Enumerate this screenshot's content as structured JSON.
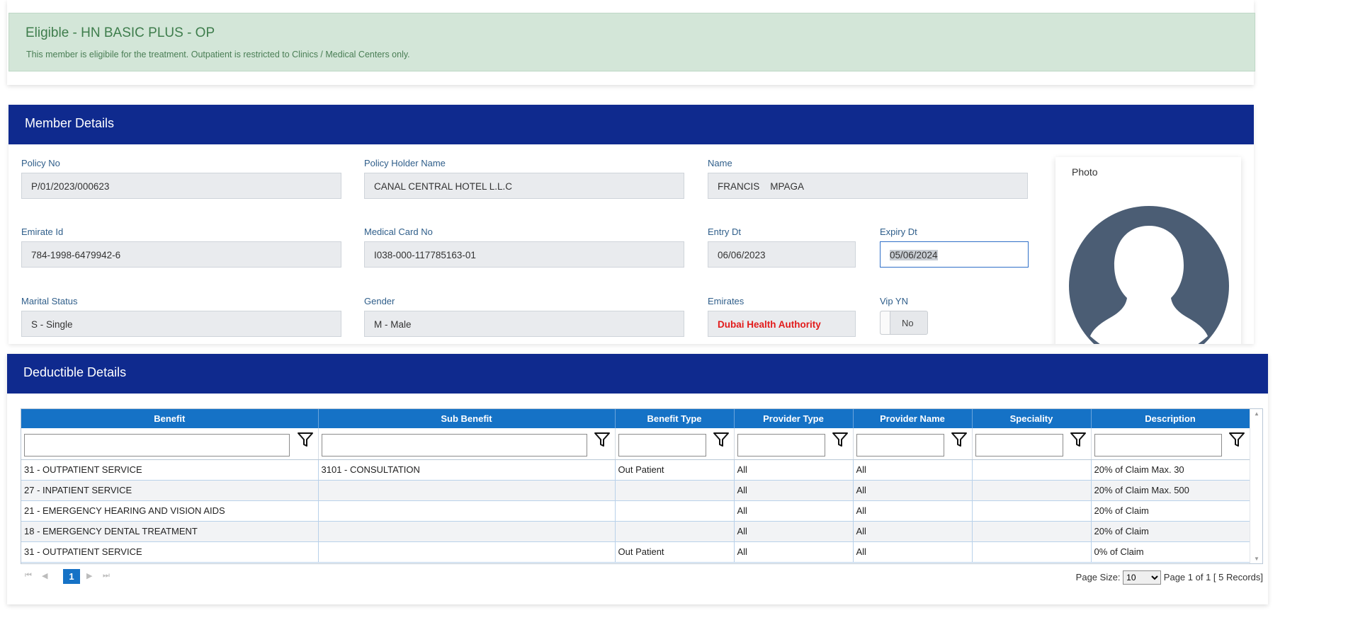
{
  "eligibility": {
    "title": "Eligible - HN BASIC PLUS - OP",
    "message": "This member is eligibile for the treatment. Outpatient is restricted to Clinics / Medical Centers only."
  },
  "member": {
    "header": "Member Details",
    "policy_no": {
      "label": "Policy No",
      "value": "P/01/2023/000623"
    },
    "policy_holder": {
      "label": "Policy Holder Name",
      "value": "CANAL CENTRAL HOTEL L.L.C"
    },
    "name": {
      "label": "Name",
      "value": "FRANCIS    MPAGA"
    },
    "emirate_id": {
      "label": "Emirate Id",
      "value": "784-1998-6479942-6"
    },
    "medical_card": {
      "label": "Medical Card No",
      "value": "I038-000-117785163-01"
    },
    "entry_dt": {
      "label": "Entry Dt",
      "value": "06/06/2023"
    },
    "expiry_dt": {
      "label": "Expiry Dt",
      "value": "05/06/2024"
    },
    "marital_status": {
      "label": "Marital Status",
      "value": "S - Single"
    },
    "gender": {
      "label": "Gender",
      "value": "M - Male"
    },
    "emirates": {
      "label": "Emirates",
      "value": "Dubai Health Authority",
      "color": "#e21b1b"
    },
    "vip": {
      "label": "Vip YN",
      "value": "No"
    },
    "photo_label": "Photo"
  },
  "deductible": {
    "header": "Deductible Details",
    "columns": [
      "Benefit",
      "Sub Benefit",
      "Benefit Type",
      "Provider Type",
      "Provider Name",
      "Speciality",
      "Description"
    ],
    "rows": [
      [
        "31 - OUTPATIENT SERVICE",
        "3101 - CONSULTATION",
        "Out Patient",
        "All",
        "All",
        "",
        "20% of Claim Max. 30"
      ],
      [
        "27 - INPATIENT SERVICE",
        "",
        "",
        "All",
        "All",
        "",
        "20% of Claim Max. 500"
      ],
      [
        "21 - EMERGENCY HEARING AND VISION AIDS",
        "",
        "",
        "All",
        "All",
        "",
        "20% of Claim"
      ],
      [
        "18 - EMERGENCY DENTAL TREATMENT",
        "",
        "",
        "All",
        "All",
        "",
        "20% of Claim"
      ],
      [
        "31 - OUTPATIENT SERVICE",
        "",
        "Out Patient",
        "All",
        "All",
        "",
        "0% of Claim"
      ]
    ],
    "pager": {
      "current_page": "1",
      "page_size_label": "Page Size:",
      "page_size": "10",
      "page_size_options": [
        "10"
      ],
      "summary": "Page 1 of 1 [ 5 Records]"
    }
  },
  "icons": {
    "filter": "filter-funnel-icon",
    "first": "first-page-icon",
    "prev": "previous-page-icon",
    "next": "next-page-icon",
    "last": "last-page-icon",
    "avatar": "person-silhouette-icon"
  },
  "colors": {
    "header_blue": "#0f2a8e",
    "grid_header": "#1572c6",
    "eligible_bg": "#d3e6d8",
    "eligible_text": "#3e7d4c"
  }
}
